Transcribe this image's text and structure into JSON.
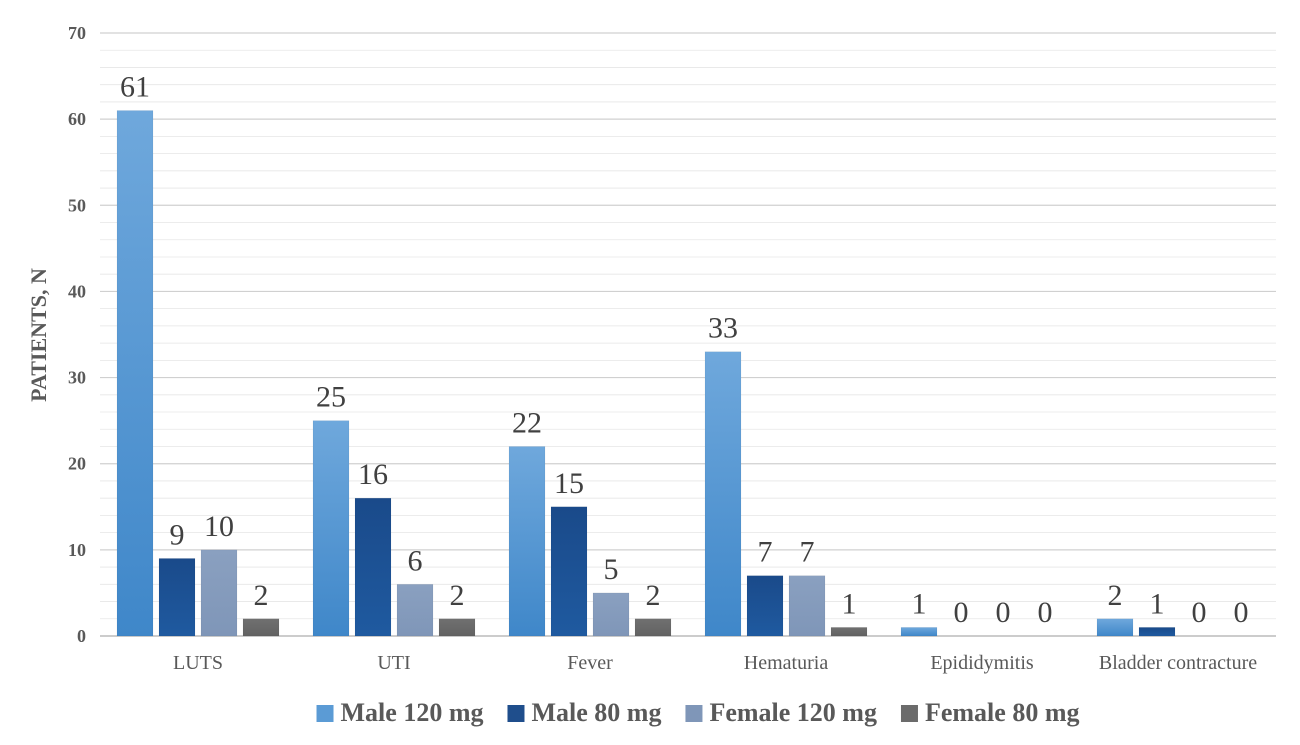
{
  "chart_data": {
    "type": "bar",
    "title": "",
    "xlabel": "",
    "ylabel": "PATIENTS, N",
    "ylim": [
      0,
      70
    ],
    "yticks": [
      0,
      10,
      20,
      30,
      40,
      50,
      60,
      70
    ],
    "grid": true,
    "legend_position": "bottom",
    "categories": [
      "LUTS",
      "UTI",
      "Fever",
      "Hematuria",
      "Epididymitis",
      "Bladder contracture"
    ],
    "series": [
      {
        "name": "Male 120 mg",
        "color": "#5b9bd5",
        "values": [
          61,
          25,
          22,
          33,
          1,
          2
        ]
      },
      {
        "name": "Male 80 mg",
        "color": "#1f4e8c",
        "values": [
          9,
          16,
          15,
          7,
          0,
          1
        ]
      },
      {
        "name": "Female 120 mg",
        "color": "#7f96b8",
        "values": [
          10,
          6,
          5,
          7,
          0,
          0
        ]
      },
      {
        "name": "Female 80 mg",
        "color": "#6b6b6b",
        "values": [
          2,
          2,
          2,
          1,
          0,
          0
        ]
      }
    ]
  }
}
